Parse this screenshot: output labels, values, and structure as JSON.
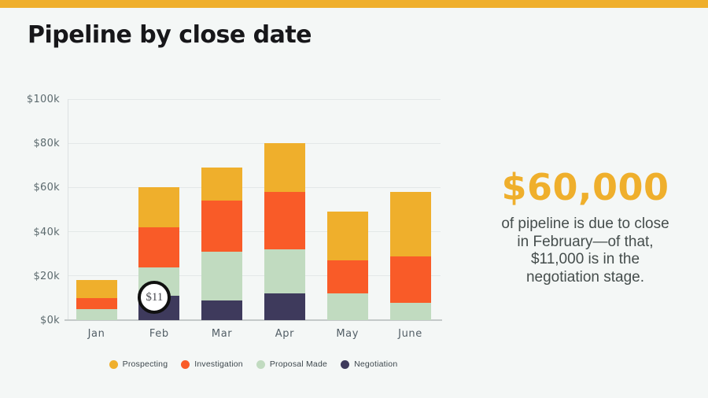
{
  "page": {
    "title": "Pipeline by close date",
    "accent_color": "#efaf2c",
    "background_color": "#f4f7f6"
  },
  "callout": {
    "headline": "$60,000",
    "headline_color": "#efaf2c",
    "lines": [
      "of pipeline is due to close",
      "in February—of that,",
      "$11,000 is in the",
      "negotiation stage."
    ]
  },
  "chart_data": {
    "type": "bar",
    "stacked": true,
    "title": "Pipeline by close date",
    "categories": [
      "Jan",
      "Feb",
      "Mar",
      "Apr",
      "May",
      "June"
    ],
    "series": [
      {
        "name": "Prospecting",
        "color": "#efaf2c",
        "values": [
          8,
          18,
          15,
          22,
          22,
          29
        ]
      },
      {
        "name": "Investigation",
        "color": "#f95b28",
        "values": [
          5,
          18,
          23,
          26,
          15,
          21
        ]
      },
      {
        "name": "Proposal Made",
        "color": "#c1dbc0",
        "values": [
          5,
          13,
          22,
          20,
          12,
          8
        ]
      },
      {
        "name": "Negotiation",
        "color": "#3e3a5c",
        "values": [
          0,
          11,
          9,
          12,
          0,
          0
        ]
      }
    ],
    "stack_order_bottom_to_top": [
      "Negotiation",
      "Proposal Made",
      "Investigation",
      "Prospecting"
    ],
    "totals": [
      18,
      60,
      69,
      80,
      49,
      58
    ],
    "unit": "USD thousands",
    "xlabel": "",
    "ylabel": "",
    "ylim": [
      0,
      100
    ],
    "y_ticks": [
      {
        "label": "$100k",
        "value": 100
      },
      {
        "label": "$80k",
        "value": 80
      },
      {
        "label": "$60k",
        "value": 60
      },
      {
        "label": "$40k",
        "value": 40
      },
      {
        "label": "$20k",
        "value": 20
      },
      {
        "label": "$0k",
        "value": 0
      }
    ],
    "grid": true,
    "legend_position": "bottom",
    "annotation": {
      "label": "$11",
      "category": "Feb",
      "series": "Negotiation"
    }
  }
}
